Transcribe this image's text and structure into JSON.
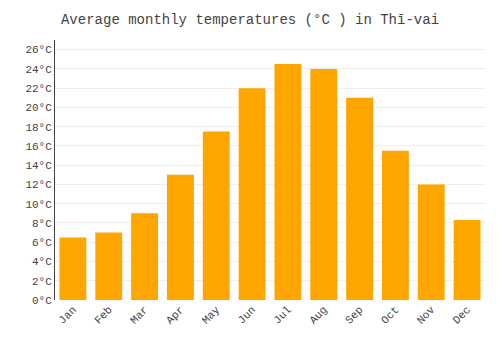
{
  "chart_data": {
    "type": "bar",
    "title": "Average monthly temperatures (°C ) in Thī-vai",
    "categories": [
      "Jan",
      "Feb",
      "Mar",
      "Apr",
      "May",
      "Jun",
      "Jul",
      "Aug",
      "Sep",
      "Oct",
      "Nov",
      "Dec"
    ],
    "values": [
      6.5,
      7.0,
      9.0,
      13.0,
      17.5,
      22.0,
      24.5,
      24.0,
      21.0,
      15.5,
      12.0,
      8.3
    ],
    "color": "#FFA500",
    "ylim": [
      0,
      27
    ],
    "yticks": [
      {
        "value": 0,
        "label": "0°C"
      },
      {
        "value": 2,
        "label": "2°C"
      },
      {
        "value": 4,
        "label": "4°C"
      },
      {
        "value": 6,
        "label": "6°C"
      },
      {
        "value": 8,
        "label": "8°C"
      },
      {
        "value": 10,
        "label": "10°C"
      },
      {
        "value": 12,
        "label": "12°C"
      },
      {
        "value": 14,
        "label": "14°C"
      },
      {
        "value": 16,
        "label": "16°C"
      },
      {
        "value": 18,
        "label": "18°C"
      },
      {
        "value": 20,
        "label": "20°C"
      },
      {
        "value": 22,
        "label": "22°C"
      },
      {
        "value": 24,
        "label": "24°C"
      },
      {
        "value": 26,
        "label": "26°C"
      }
    ],
    "grid": true
  }
}
